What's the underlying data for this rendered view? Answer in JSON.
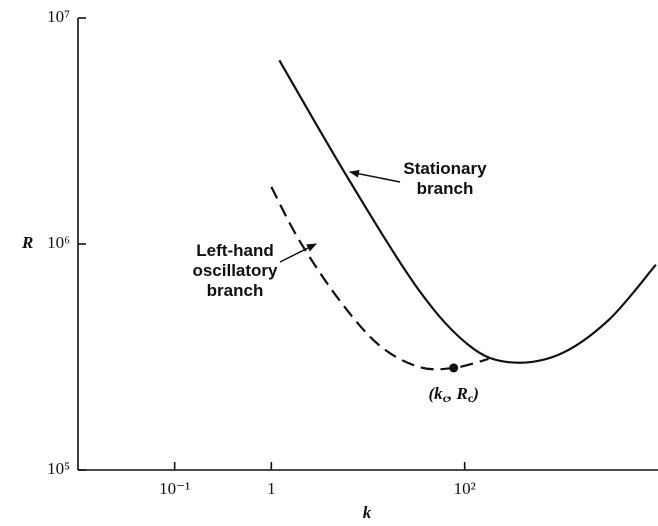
{
  "chart_data": {
    "type": "line",
    "x_label": "k",
    "y_label": "R",
    "log_x": true,
    "log_y": true,
    "xlim": [
      0.01,
      10000
    ],
    "ylim": [
      100000,
      10000000
    ],
    "xticks": [
      {
        "value": 0.1,
        "label": "10⁻¹"
      },
      1,
      {
        "value": 100,
        "label": "10²"
      }
    ],
    "yticks": [
      {
        "value": 100000,
        "label": "10⁵"
      },
      {
        "value": 1000000,
        "label": "10⁶"
      },
      {
        "value": 10000000,
        "label": "10⁷"
      }
    ],
    "series": [
      {
        "name": "Stationary branch",
        "name_lines": [
          "Stationary",
          "branch"
        ],
        "color": "#111111",
        "dash": false,
        "x": [
          1.21,
          6.37,
          33.6,
          110,
          286,
          930,
          3070,
          9500
        ],
        "values": [
          6500000,
          1920000,
          625000,
          357000,
          300000,
          323000,
          460000,
          810000
        ]
      },
      {
        "name": "Left-hand oscillatory branch",
        "name_lines": [
          "Left-hand",
          "oscillatory",
          "branch"
        ],
        "color": "#111111",
        "dash": true,
        "x": [
          1,
          1.94,
          5.03,
          13,
          33.6,
          77,
          177
        ],
        "values": [
          1790000,
          1040000,
          566000,
          357000,
          286000,
          283000,
          310000
        ]
      }
    ],
    "critical_point": {
      "x": 77,
      "value": 283000,
      "label_parts": [
        "(k",
        "c",
        ", R",
        "c",
        ")"
      ]
    }
  }
}
